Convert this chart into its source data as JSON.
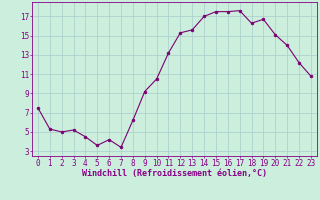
{
  "x": [
    0,
    1,
    2,
    3,
    4,
    5,
    6,
    7,
    8,
    9,
    10,
    11,
    12,
    13,
    14,
    15,
    16,
    17,
    18,
    19,
    20,
    21,
    22,
    23
  ],
  "y": [
    7.5,
    5.3,
    5.0,
    5.2,
    4.5,
    3.6,
    4.2,
    3.4,
    6.2,
    9.2,
    10.5,
    13.2,
    15.3,
    15.6,
    17.0,
    17.5,
    17.5,
    17.6,
    16.3,
    16.7,
    15.1,
    14.0,
    12.2,
    10.8
  ],
  "line_color": "#7b0073",
  "marker": "o",
  "marker_size": 2.0,
  "bg_color": "#cceedd",
  "grid_color": "#aacccc",
  "xlabel": "Windchill (Refroidissement éolien,°C)",
  "xlabel_fontsize": 6.0,
  "tick_color": "#880088",
  "tick_fontsize": 5.5,
  "ylim": [
    2.5,
    18.5
  ],
  "xlim": [
    -0.5,
    23.5
  ],
  "yticks": [
    3,
    5,
    7,
    9,
    11,
    13,
    15,
    17
  ],
  "xticks": [
    0,
    1,
    2,
    3,
    4,
    5,
    6,
    7,
    8,
    9,
    10,
    11,
    12,
    13,
    14,
    15,
    16,
    17,
    18,
    19,
    20,
    21,
    22,
    23
  ]
}
